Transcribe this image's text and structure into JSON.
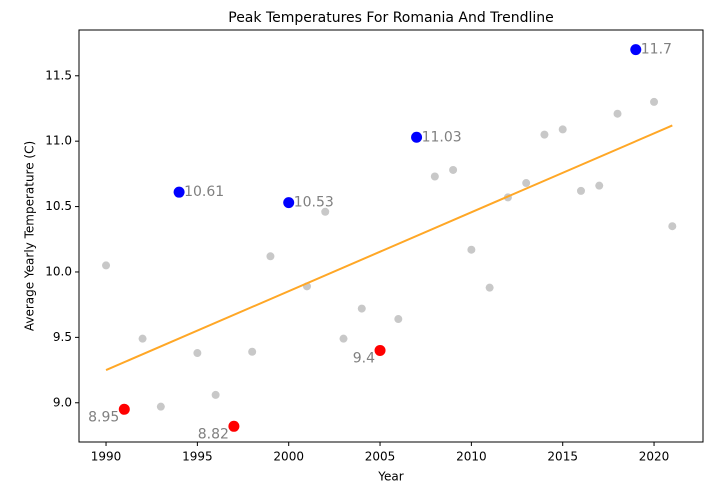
{
  "chart_data": {
    "type": "scatter",
    "title": "Peak Temperatures For Romania And Trendline",
    "x_label": "Year",
    "y_label": "Average Yearly Temperature (C)",
    "xlim": [
      1988.52,
      2022.68
    ],
    "ylim": [
      8.7,
      11.85
    ],
    "xticks": [
      1990,
      1995,
      2000,
      2005,
      2010,
      2015,
      2020
    ],
    "yticks": [
      {
        "value": 9,
        "label": "9.0"
      },
      9.5,
      {
        "value": 10,
        "label": "10.0"
      },
      10.5,
      {
        "value": 11,
        "label": "11.0"
      },
      11.5
    ],
    "series": [
      {
        "color": "#c8c8c8",
        "marker_size": 4,
        "x": [
          1990,
          1992,
          1993,
          1995,
          1996,
          1998,
          1999,
          2001,
          2002,
          2003,
          2004,
          2006,
          2008,
          2009,
          2010,
          2011,
          2012,
          2013,
          2014,
          2015,
          2016,
          2017,
          2018,
          2020,
          2021
        ],
        "values": [
          10.05,
          9.49,
          8.97,
          9.38,
          9.06,
          9.39,
          10.12,
          9.89,
          10.46,
          9.49,
          9.72,
          9.64,
          10.73,
          10.78,
          10.17,
          9.88,
          10.57,
          10.68,
          11.05,
          11.09,
          10.62,
          10.66,
          11.21,
          11.3,
          10.35
        ]
      },
      {
        "color": "#0000ff",
        "marker_size": 5.5,
        "labels": "right",
        "x": [
          1994,
          2000,
          2007,
          2019
        ],
        "values": [
          10.61,
          10.53,
          11.03,
          11.7
        ]
      },
      {
        "color": "#ff0000",
        "marker_size": 5.5,
        "labels": "left",
        "x": [
          1991,
          1997,
          2005
        ],
        "values": [
          8.95,
          8.82,
          9.4
        ]
      },
      {
        "kind": "line",
        "color": "#ffa726",
        "x": [
          1990,
          2021
        ],
        "values": [
          9.25,
          11.12
        ]
      }
    ]
  }
}
